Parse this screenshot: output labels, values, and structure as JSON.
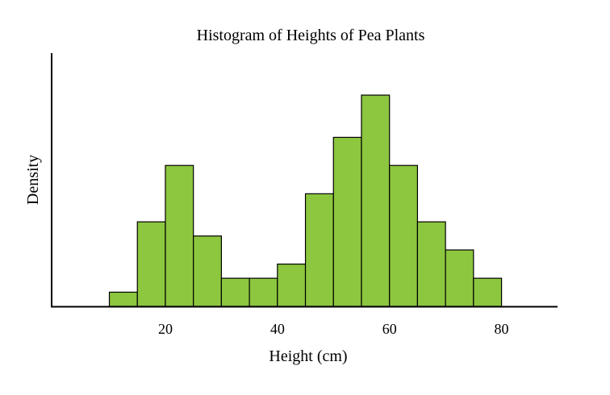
{
  "chart_data": {
    "type": "bar",
    "title": "Histogram of Heights of Pea Plants",
    "xlabel": "Height (cm)",
    "ylabel": "Density",
    "bar_color": "#8dc63f",
    "xlim": [
      -0.3,
      90
    ],
    "ylim": [
      0,
      1
    ],
    "x_ticks": [
      20,
      40,
      60,
      80
    ],
    "bin_width": 5,
    "bins": [
      {
        "start": 10,
        "end": 15,
        "value": 0.067
      },
      {
        "start": 15,
        "end": 20,
        "value": 0.4
      },
      {
        "start": 20,
        "end": 25,
        "value": 0.667
      },
      {
        "start": 25,
        "end": 30,
        "value": 0.333
      },
      {
        "start": 30,
        "end": 35,
        "value": 0.133
      },
      {
        "start": 35,
        "end": 40,
        "value": 0.133
      },
      {
        "start": 40,
        "end": 45,
        "value": 0.2
      },
      {
        "start": 45,
        "end": 50,
        "value": 0.533
      },
      {
        "start": 50,
        "end": 55,
        "value": 0.8
      },
      {
        "start": 55,
        "end": 60,
        "value": 1.0
      },
      {
        "start": 60,
        "end": 65,
        "value": 0.667
      },
      {
        "start": 65,
        "end": 70,
        "value": 0.4
      },
      {
        "start": 70,
        "end": 75,
        "value": 0.267
      },
      {
        "start": 75,
        "end": 80,
        "value": 0.133
      }
    ]
  }
}
